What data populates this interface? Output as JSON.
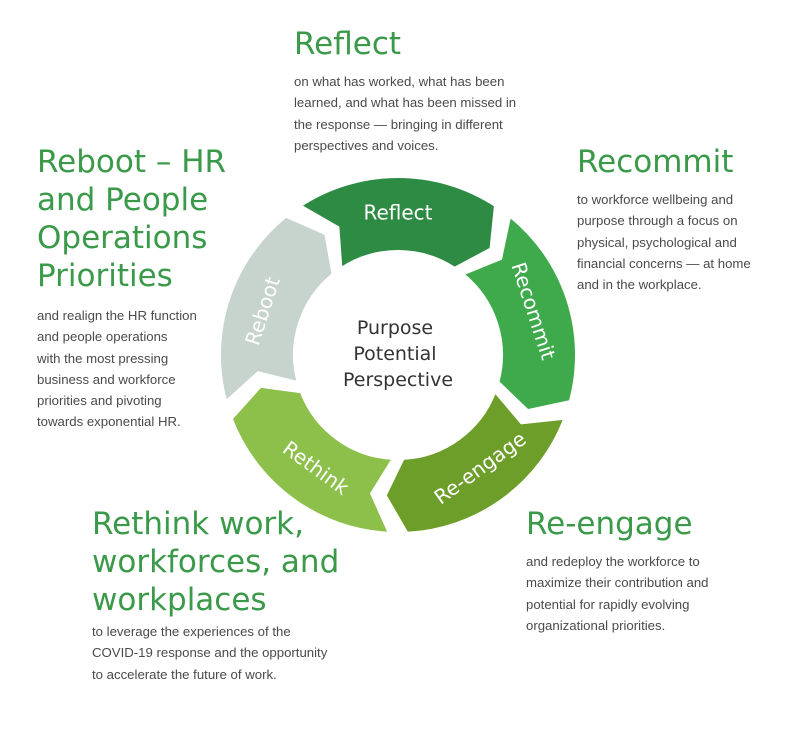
{
  "center": [
    "Purpose",
    "Potential",
    "Perspective"
  ],
  "segments": [
    {
      "label": "Reflect",
      "color": "#2e8b44"
    },
    {
      "label": "Recommit",
      "color": "#3faa4c"
    },
    {
      "label": "Re-engage",
      "color": "#6d9e2a"
    },
    {
      "label": "Rethink",
      "color": "#8cc04a"
    },
    {
      "label": "Reboot",
      "color": "#c6d4cd"
    }
  ],
  "blocks": {
    "reflect": {
      "heading": "Reflect",
      "text": "on what has worked, what has been\nlearned, and what has been missed in\nthe response — bringing in different\nperspectives and voices."
    },
    "recommit": {
      "heading": "Recommit",
      "text": "to workforce wellbeing and\npurpose through a focus on\nphysical, psychological and\nfinancial concerns — at home\nand in the workplace."
    },
    "reboot": {
      "heading": "Reboot – HR\nand People\nOperations\nPriorities",
      "text": "and realign the HR function\nand people operations\nwith the most pressing\nbusiness and workforce\npriorities and pivoting\ntowards exponential HR."
    },
    "reengage": {
      "heading": "Re-engage",
      "text": "and redeploy the workforce to\nmaximize their contribution and\npotential for rapidly evolving\norganizational priorities."
    },
    "rethink": {
      "heading": "Rethink work,\nworkforces, and\nworkplaces",
      "text": "to leverage the experiences of the\nCOVID-19 response and the opportunity\nto accelerate the future of work."
    }
  }
}
